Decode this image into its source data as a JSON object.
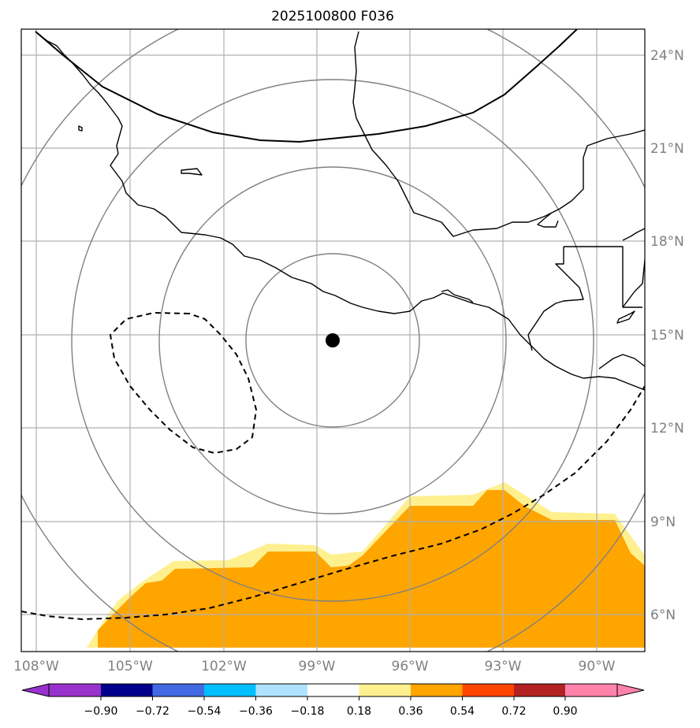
{
  "title": "2025100800 F036",
  "map": {
    "lon_range": [
      -108.5,
      -88.5
    ],
    "lat_range": [
      5,
      25
    ],
    "center_marker": {
      "lon": -98.5,
      "lat": 14.8
    },
    "range_rings_deg": [
      2.8,
      5.6,
      8.4,
      11.2
    ],
    "colors": {
      "grid": "#b0b0b0",
      "rings": "#808080",
      "coast": "#000000",
      "shade_light": "#fff08f",
      "shade_dark": "#ffa500"
    }
  },
  "lon_ticks": [
    "108°W",
    "105°W",
    "102°W",
    "99°W",
    "96°W",
    "93°W",
    "90°W"
  ],
  "lat_ticks": [
    "24°N",
    "21°N",
    "18°N",
    "15°N",
    "12°N",
    "9°N",
    "6°N"
  ],
  "colorbar": {
    "labels": [
      "−0.90",
      "−0.72",
      "−0.54",
      "−0.36",
      "−0.18",
      "0.18",
      "0.36",
      "0.54",
      "0.72",
      "0.90"
    ],
    "colors": [
      "#9932cc",
      "#00008b",
      "#4169e1",
      "#00bfff",
      "#b0e2ff",
      "#ffffff",
      "#fff08f",
      "#ffa500",
      "#ff4500",
      "#b22222",
      "#ff82ab"
    ]
  }
}
